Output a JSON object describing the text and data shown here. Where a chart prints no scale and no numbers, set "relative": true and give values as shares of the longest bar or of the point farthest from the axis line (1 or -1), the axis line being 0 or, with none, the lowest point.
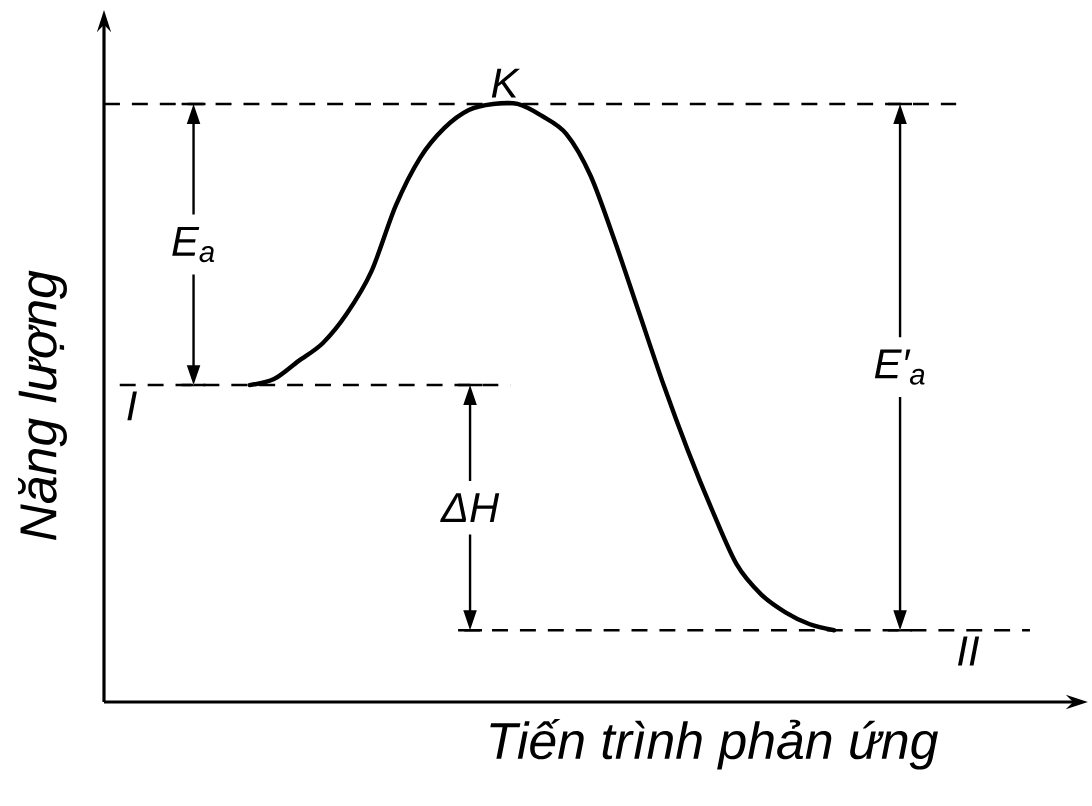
{
  "chart_data": {
    "type": "line",
    "relative": true,
    "xlabel": "Tiến trình phản ứng",
    "ylabel": "Năng lượng",
    "categories": [
      null,
      null,
      null,
      null,
      null,
      null,
      null,
      null,
      null,
      null,
      null,
      null,
      null,
      null,
      null,
      null,
      null,
      null,
      null,
      null,
      null,
      null,
      null,
      null,
      null
    ],
    "series": [
      {
        "color": "#000000",
        "values": [
          0.53,
          0.54,
          0.57,
          0.6,
          0.65,
          0.72,
          0.83,
          0.91,
          0.96,
          0.99,
          1.0,
          1.0,
          0.98,
          0.95,
          0.88,
          0.77,
          0.65,
          0.53,
          0.42,
          0.32,
          0.23,
          0.18,
          0.15,
          0.13,
          0.12
        ]
      }
    ],
    "ref_lines": [
      {
        "axis": "y",
        "value": 1,
        "label": "K",
        "color": "#000000",
        "line_style": "dashed"
      },
      {
        "axis": "y",
        "value": 0.53,
        "label": "I",
        "color": "#000000",
        "line_style": "dashed"
      },
      {
        "axis": "y",
        "value": 0.12,
        "label": "II",
        "color": "#000000",
        "line_style": "dashed"
      }
    ],
    "annotations": [
      "E$_{a}$",
      "ΔH",
      "E′$_{a}$"
    ],
    "marker": "none",
    "line_style": "solid"
  }
}
